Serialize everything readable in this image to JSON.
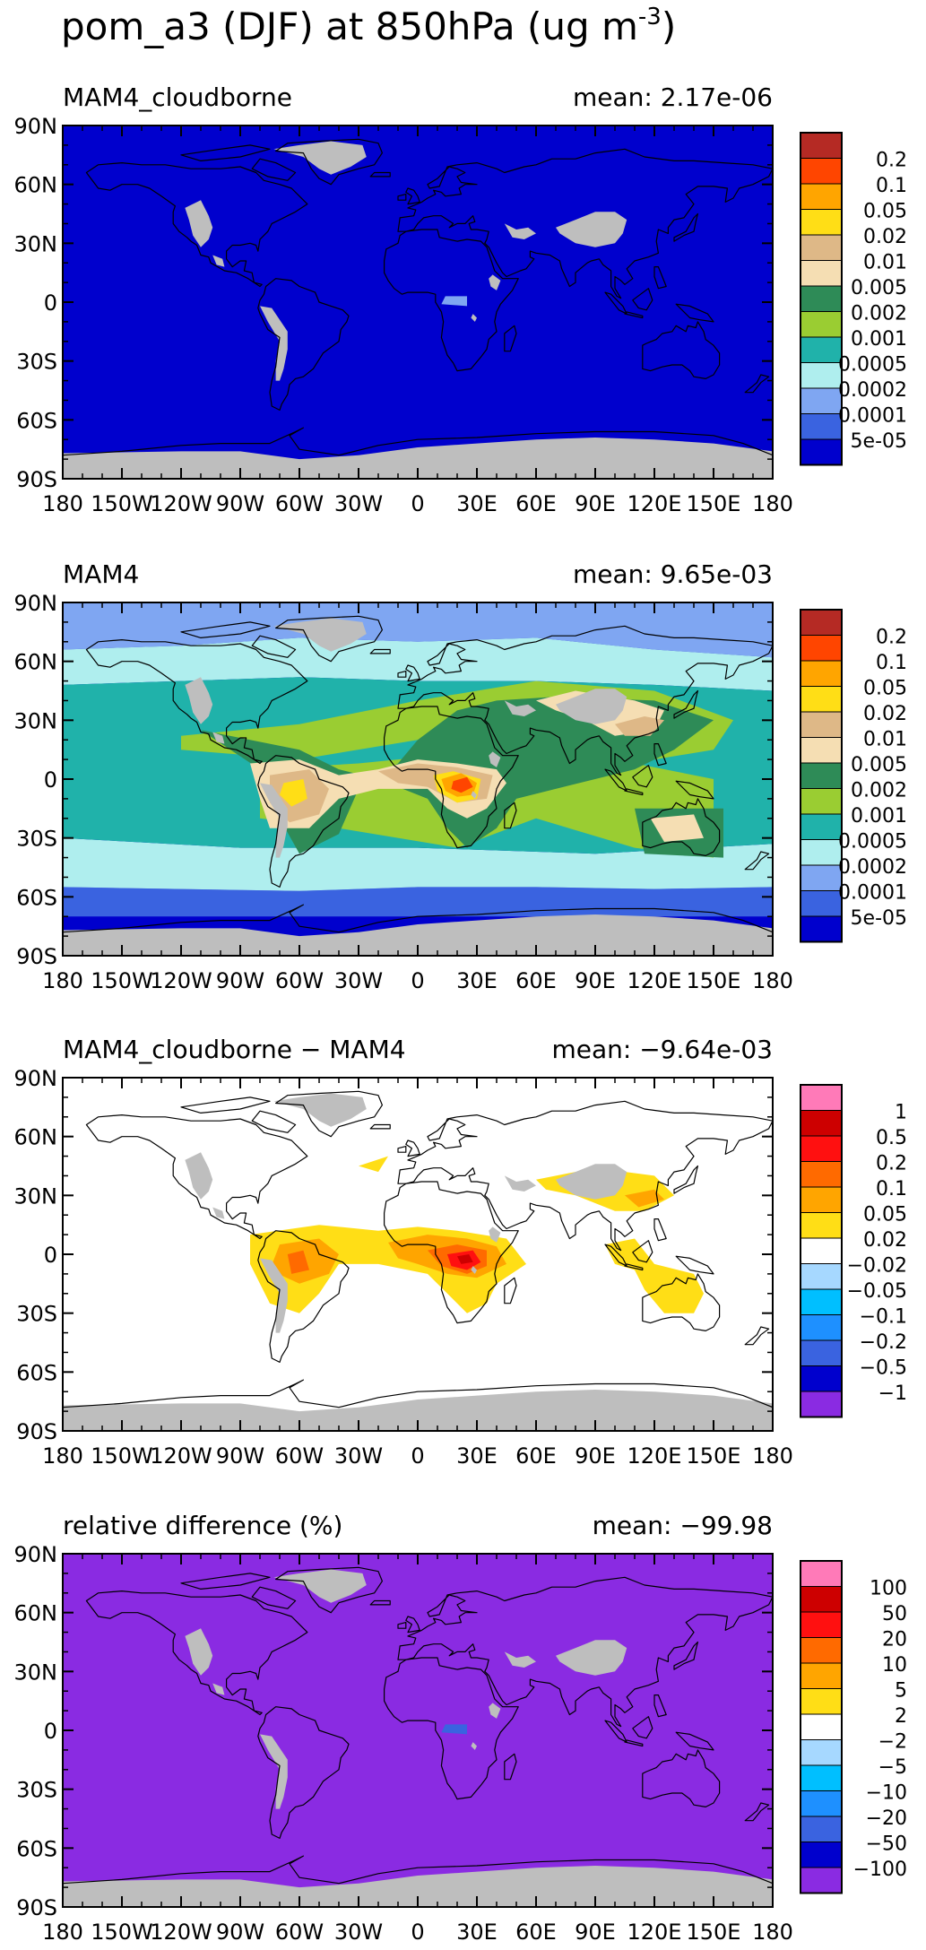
{
  "figure": {
    "title_main": "pom_a3 (DJF) at 850hPa (ug m",
    "title_sup": "-3",
    "title_close": ")"
  },
  "axes": {
    "lat_ticks": [
      "90N",
      "60N",
      "30N",
      "0",
      "30S",
      "60S",
      "90S"
    ],
    "lon_ticks": [
      "180",
      "150W",
      "120W",
      "90W",
      "60W",
      "30W",
      "0",
      "30E",
      "60E",
      "90E",
      "120E",
      "150E",
      "180"
    ]
  },
  "panels": [
    {
      "name": "MAM4_cloudborne",
      "mean_label": "mean: 2.17e-06",
      "field": "cloudborne",
      "legend": {
        "labels": [
          "0.2",
          "0.1",
          "0.05",
          "0.02",
          "0.01",
          "0.005",
          "0.002",
          "0.001",
          "0.0005",
          "0.0002",
          "0.0001",
          "5e-05"
        ],
        "colors": [
          "#b52a24",
          "#ff4500",
          "#ffa500",
          "#ffde16",
          "#deb887",
          "#f5deb3",
          "#2e8b57",
          "#9acd32",
          "#20b2aa",
          "#afeeee",
          "#7fa6f2",
          "#3a63e0",
          "#0000cd"
        ]
      }
    },
    {
      "name": "MAM4",
      "mean_label": "mean: 9.65e-03",
      "field": "mam4",
      "legend": {
        "labels": [
          "0.2",
          "0.1",
          "0.05",
          "0.02",
          "0.01",
          "0.005",
          "0.002",
          "0.001",
          "0.0005",
          "0.0002",
          "0.0001",
          "5e-05"
        ],
        "colors": [
          "#b52a24",
          "#ff4500",
          "#ffa500",
          "#ffde16",
          "#deb887",
          "#f5deb3",
          "#2e8b57",
          "#9acd32",
          "#20b2aa",
          "#afeeee",
          "#7fa6f2",
          "#3a63e0",
          "#0000cd"
        ]
      }
    },
    {
      "name": "MAM4_cloudborne − MAM4",
      "mean_label": "mean: −9.64e-03",
      "field": "diff",
      "legend": {
        "labels": [
          "1",
          "0.5",
          "0.2",
          "0.1",
          "0.05",
          "0.02",
          "−0.02",
          "−0.05",
          "−0.1",
          "−0.2",
          "−0.5",
          "−1"
        ],
        "colors": [
          "#ff7ab8",
          "#cd0000",
          "#ff1010",
          "#ff6a00",
          "#ffa500",
          "#ffde16",
          "#ffffff",
          "#a6d8ff",
          "#00bfff",
          "#1e90ff",
          "#3a63e0",
          "#0000cd",
          "#8a2be2"
        ]
      }
    },
    {
      "name": "relative difference (%)",
      "mean_label": "mean: −99.98",
      "field": "cloudborne",
      "legend": {
        "labels": [
          "100",
          "50",
          "20",
          "10",
          "5",
          "2",
          "−2",
          "−5",
          "−10",
          "−20",
          "−50",
          "−100"
        ],
        "colors": [
          "#ff7ab8",
          "#cd0000",
          "#ff1010",
          "#ff6a00",
          "#ffa500",
          "#ffde16",
          "#ffffff",
          "#a6d8ff",
          "#00bfff",
          "#1e90ff",
          "#3a63e0",
          "#0000cd",
          "#8a2be2"
        ]
      }
    }
  ]
}
